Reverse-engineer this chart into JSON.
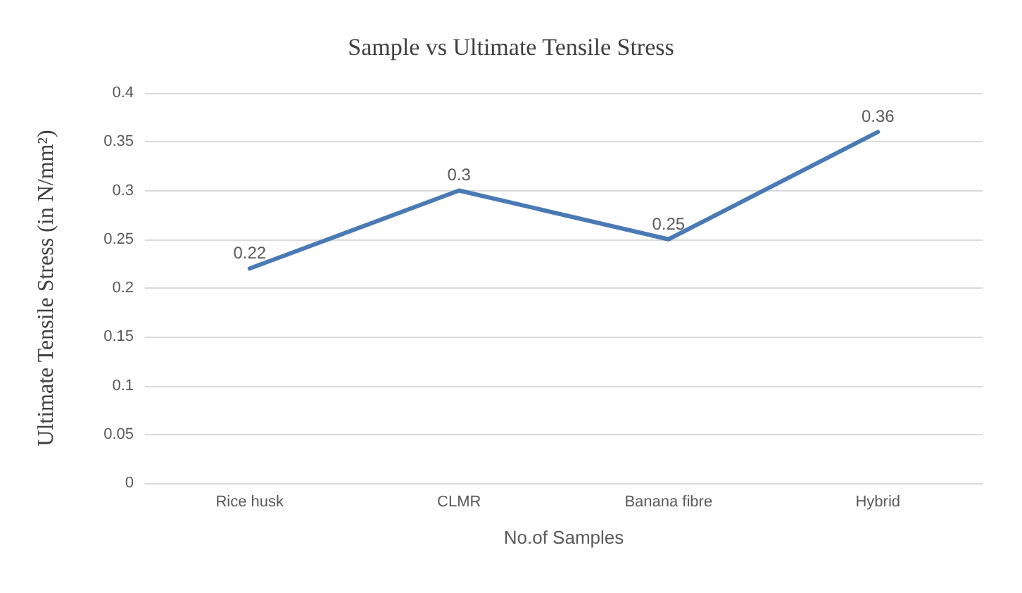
{
  "chart_data": {
    "type": "line",
    "title": "Sample vs Ultimate Tensile Stress",
    "xlabel": "No.of Samples",
    "ylabel": "Ultimate Tensile Stress (in N/mm²)",
    "categories": [
      "Rice husk",
      "CLMR",
      "Banana fibre",
      "Hybrid"
    ],
    "series": [
      {
        "color": "#4a7ab5",
        "values": [
          0.22,
          0.3,
          0.25,
          0.36
        ]
      }
    ],
    "ylim": [
      0,
      0.4
    ],
    "yticks": [
      0,
      0.05,
      0.1,
      0.15,
      0.2,
      0.25,
      0.3,
      0.35,
      0.4
    ],
    "grid": "y",
    "data_labels": true,
    "marker": "none",
    "line_style": "solid"
  }
}
